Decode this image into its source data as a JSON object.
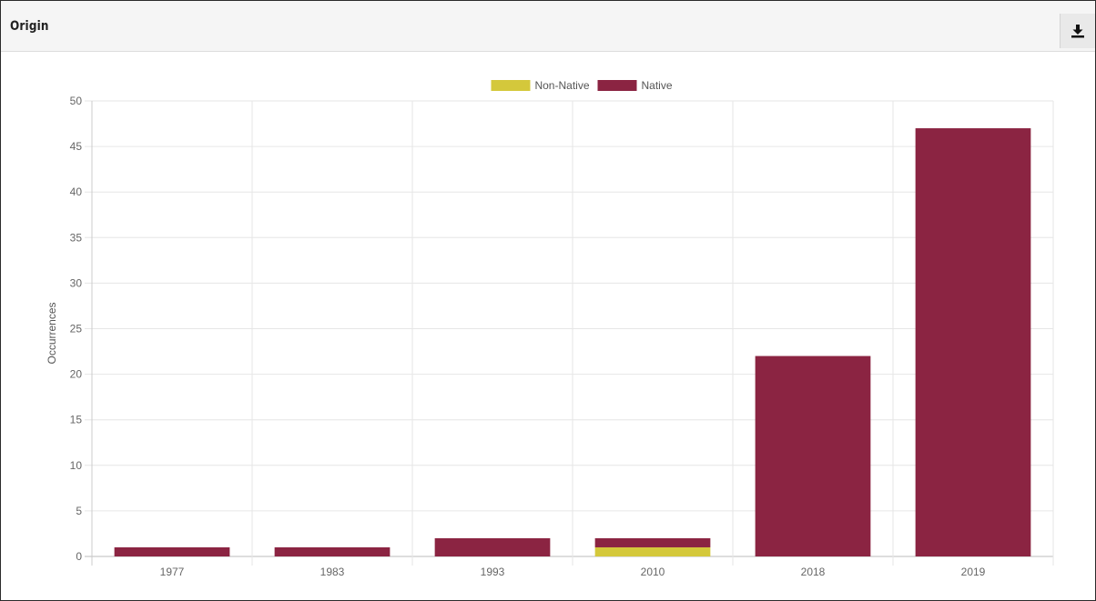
{
  "panel": {
    "title": "Origin",
    "download_icon": "download-icon"
  },
  "chart_data": {
    "type": "bar",
    "stacked": true,
    "categories": [
      "1977",
      "1983",
      "1993",
      "2010",
      "2018",
      "2019"
    ],
    "series": [
      {
        "name": "Non-Native",
        "color": "#d4c83b",
        "values": [
          0,
          0,
          0,
          1,
          0,
          0
        ]
      },
      {
        "name": "Native",
        "color": "#8b2442",
        "values": [
          1,
          1,
          2,
          1,
          22,
          47
        ]
      }
    ],
    "ylabel": "Occurrences",
    "xlabel": "",
    "ylim": [
      0,
      50
    ],
    "yticks": [
      0,
      5,
      10,
      15,
      20,
      25,
      30,
      35,
      40,
      45,
      50
    ],
    "grid": true,
    "legend_position": "top-center"
  }
}
